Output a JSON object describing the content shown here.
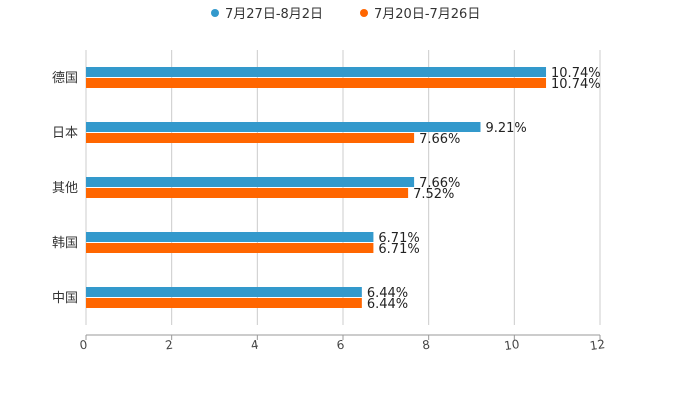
{
  "chart_data": {
    "type": "bar",
    "orientation": "horizontal",
    "categories": [
      "德国",
      "日本",
      "其他",
      "韩国",
      "中国"
    ],
    "series": [
      {
        "name": "7月27日-8月2日",
        "color": "#3399cc",
        "values": [
          10.74,
          9.21,
          7.66,
          6.71,
          6.44
        ],
        "labels": [
          "10.74%",
          "9.21%",
          "7.66%",
          "6.71%",
          "6.44%"
        ]
      },
      {
        "name": "7月20日-7月26日",
        "color": "#ff6600",
        "values": [
          10.74,
          7.66,
          7.52,
          6.71,
          6.44
        ],
        "labels": [
          "10.74%",
          "7.66%",
          "7.52%",
          "6.71%",
          "6.44%"
        ]
      }
    ],
    "xlim": [
      0,
      12
    ],
    "xticks": [
      "0",
      "2",
      "4",
      "6",
      "8",
      "10",
      "12"
    ],
    "grid": true,
    "legend": "top-center",
    "title": "",
    "xlabel": "",
    "ylabel": ""
  }
}
